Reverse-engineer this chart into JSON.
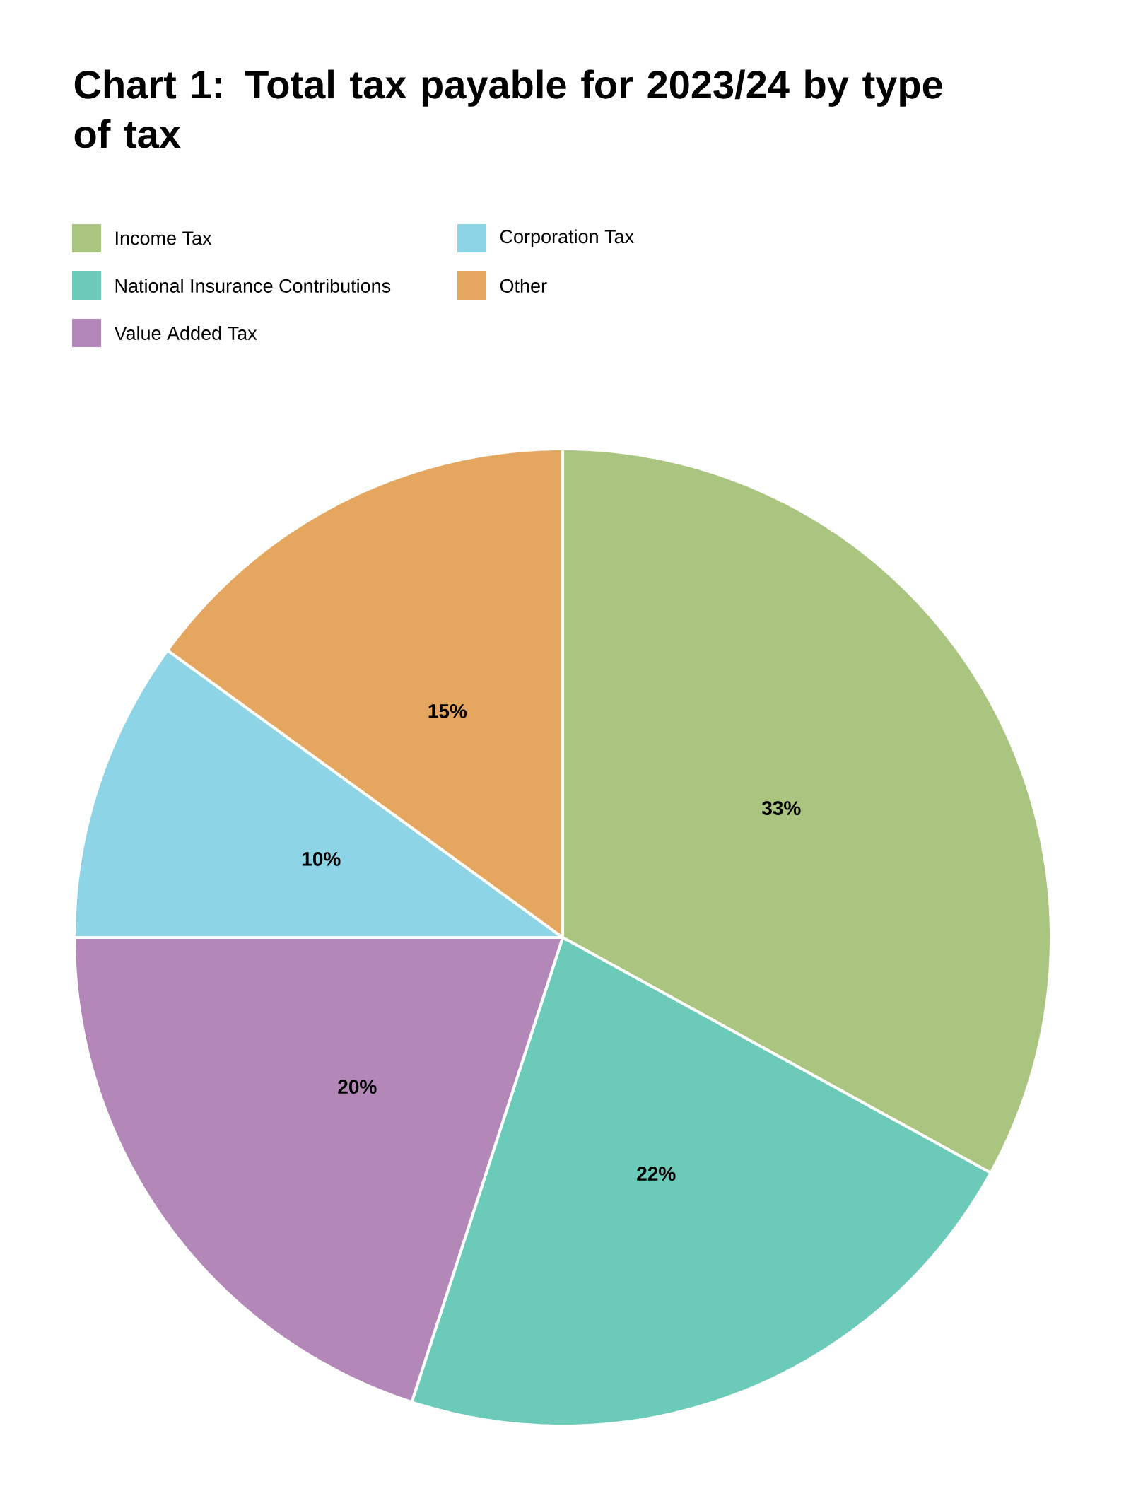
{
  "chart_data": {
    "type": "pie",
    "title": "Chart 1: Total tax payable for 2023/24 by type of tax",
    "categories": [
      "Income Tax",
      "National Insurance Contributions",
      "Value Added Tax",
      "Corporation Tax",
      "Other"
    ],
    "values": [
      33,
      22,
      20,
      10,
      15
    ],
    "colors": [
      "#a9c580",
      "#6ccab9",
      "#b388b8",
      "#8dd4e6",
      "#e5a660"
    ],
    "value_labels": [
      "33%",
      "22%",
      "20%",
      "10%",
      "15%"
    ],
    "legend": "top"
  }
}
